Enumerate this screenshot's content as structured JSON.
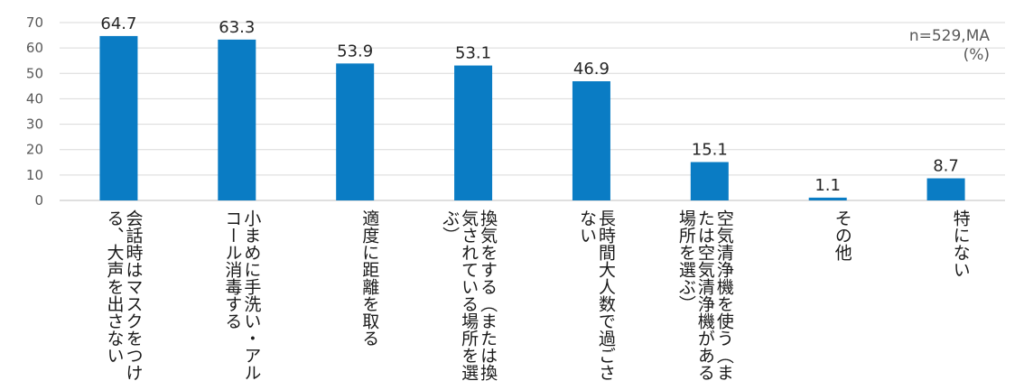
{
  "chart_data": {
    "type": "bar",
    "categories": [
      "会話時はマスクをつける、大声を出さない",
      "小まめに手洗い・アルコール消毒する",
      "適度に距離を取る",
      "換気をする（または換気されている場所を選ぶ）",
      "長時間大人数で過ごさない",
      "空気清浄機を使う（または空気清浄機がある場所を選ぶ）",
      "その他",
      "特にない"
    ],
    "values": [
      64.7,
      63.3,
      53.9,
      53.1,
      46.9,
      15.1,
      1.1,
      8.7
    ],
    "value_labels": [
      "64.7",
      "63.3",
      "53.9",
      "53.1",
      "46.9",
      "15.1",
      "1.1",
      "8.7"
    ],
    "yticks": [
      "0",
      "10",
      "20",
      "30",
      "40",
      "50",
      "60",
      "70"
    ],
    "ylim": [
      0,
      70
    ],
    "grid": true,
    "legend": "none",
    "annotation": "n=529,MA",
    "unit": "(%)",
    "bar_color": "#0a7cc4"
  }
}
